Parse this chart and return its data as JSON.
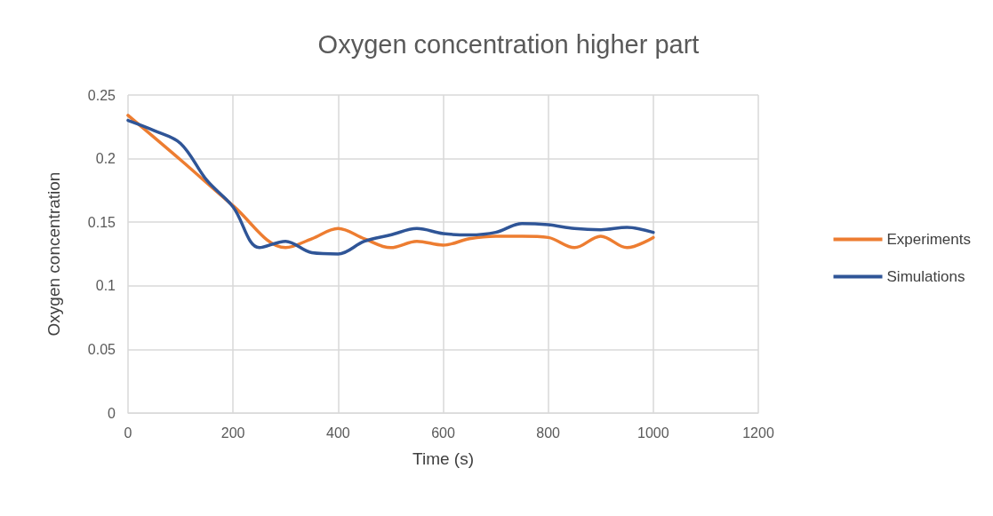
{
  "chart_data": {
    "type": "line",
    "title": "Oxygen concentration higher part",
    "xlabel": "Time (s)",
    "ylabel": "Oxygen concentration",
    "xlim": [
      0,
      1200
    ],
    "xticks": [
      0,
      200,
      400,
      600,
      800,
      1000,
      1200
    ],
    "ylim": [
      0,
      0.25
    ],
    "yticks": [
      0,
      0.05,
      0.1,
      0.15,
      0.2,
      0.25
    ],
    "grid": true,
    "legend": "right",
    "marker": "none",
    "series": [
      {
        "name": "Experiments",
        "color": "#ed7d31",
        "x": [
          0,
          100,
          200,
          300,
          350,
          400,
          450,
          500,
          550,
          600,
          650,
          700,
          750,
          800,
          850,
          900,
          950,
          1000
        ],
        "values": [
          0.234,
          0.199,
          0.163,
          0.13,
          0.137,
          0.145,
          0.137,
          0.13,
          0.135,
          0.132,
          0.137,
          0.139,
          0.139,
          0.138,
          0.13,
          0.139,
          0.13,
          0.138
        ]
      },
      {
        "name": "Simulations",
        "color": "#2f5597",
        "x": [
          0,
          50,
          100,
          150,
          200,
          250,
          300,
          350,
          400,
          450,
          500,
          550,
          600,
          650,
          700,
          750,
          800,
          850,
          900,
          950,
          1000
        ],
        "values": [
          0.23,
          0.222,
          0.212,
          0.183,
          0.162,
          0.13,
          0.135,
          0.126,
          0.125,
          0.135,
          0.14,
          0.145,
          0.141,
          0.14,
          0.142,
          0.149,
          0.148,
          0.145,
          0.144,
          0.146,
          0.142
        ]
      }
    ]
  }
}
